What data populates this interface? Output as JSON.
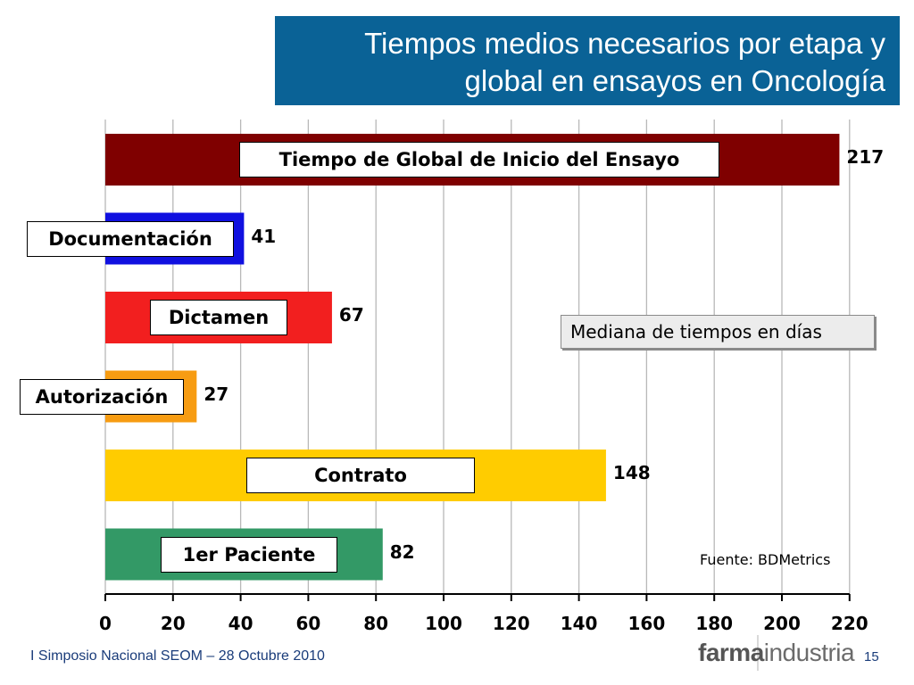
{
  "slide": {
    "title_line1": "Tiempos medios necesarios por etapa y",
    "title_line2": "global en ensayos en Oncología",
    "legend_note": "Mediana de tiempos en días",
    "source": "Fuente: BDMetrics",
    "footer_left": "I Simposio Nacional SEOM – 28 Octubre 2010",
    "logo_bold": "farma",
    "logo_light": "industria",
    "page_number": "15"
  },
  "chart_data": {
    "type": "bar",
    "orientation": "horizontal",
    "title": "Tiempos medios necesarios por etapa y global en ensayos en Oncología",
    "xlim": [
      0,
      220
    ],
    "x_ticks": [
      "0",
      "20",
      "40",
      "60",
      "80",
      "100",
      "120",
      "140",
      "160",
      "180",
      "200",
      "220"
    ],
    "grid": "vertical",
    "categories": [
      "Tiempo de Global de Inicio del Ensayo",
      "Documentación",
      "Dictamen",
      "Autorización",
      "Contrato",
      "1er Paciente"
    ],
    "values": [
      217,
      41,
      67,
      27,
      148,
      82
    ],
    "colors": [
      "#7f0000",
      "#1010e0",
      "#f21f1f",
      "#f79c12",
      "#ffcc00",
      "#339966"
    ]
  },
  "label_positions": [
    "center",
    "outside-left",
    "inside",
    "outside-left",
    "center",
    "inside"
  ]
}
